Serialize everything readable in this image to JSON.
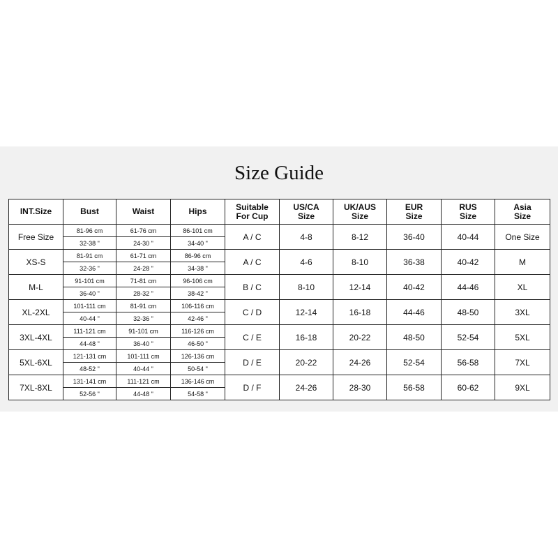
{
  "title": "Size Guide",
  "headers": [
    "INT.Size",
    "Bust",
    "Waist",
    "Hips",
    "Suitable\nFor Cup",
    "US/CA\nSize",
    "UK/AUS\nSize",
    "EUR\nSize",
    "RUS\nSize",
    "Asia\nSize"
  ],
  "rows": [
    {
      "int": "Free Size",
      "bust_cm": "81-96 cm",
      "bust_in": "32-38 \"",
      "waist_cm": "61-76 cm",
      "waist_in": "24-30 \"",
      "hips_cm": "86-101 cm",
      "hips_in": "34-40 \"",
      "cup": "A / C",
      "us": "4-8",
      "uk": "8-12",
      "eur": "36-40",
      "rus": "40-44",
      "asia": "One Size"
    },
    {
      "int": "XS-S",
      "bust_cm": "81-91 cm",
      "bust_in": "32-36 \"",
      "waist_cm": "61-71 cm",
      "waist_in": "24-28 \"",
      "hips_cm": "86-96 cm",
      "hips_in": "34-38 \"",
      "cup": "A / C",
      "us": "4-6",
      "uk": "8-10",
      "eur": "36-38",
      "rus": "40-42",
      "asia": "M"
    },
    {
      "int": "M-L",
      "bust_cm": "91-101 cm",
      "bust_in": "36-40 \"",
      "waist_cm": "71-81 cm",
      "waist_in": "28-32 \"",
      "hips_cm": "96-106 cm",
      "hips_in": "38-42 \"",
      "cup": "B / C",
      "us": "8-10",
      "uk": "12-14",
      "eur": "40-42",
      "rus": "44-46",
      "asia": "XL"
    },
    {
      "int": "XL-2XL",
      "bust_cm": "101-111 cm",
      "bust_in": "40-44 \"",
      "waist_cm": "81-91 cm",
      "waist_in": "32-36 \"",
      "hips_cm": "106-116 cm",
      "hips_in": "42-46 \"",
      "cup": "C / D",
      "us": "12-14",
      "uk": "16-18",
      "eur": "44-46",
      "rus": "48-50",
      "asia": "3XL"
    },
    {
      "int": "3XL-4XL",
      "bust_cm": "111-121 cm",
      "bust_in": "44-48 \"",
      "waist_cm": "91-101 cm",
      "waist_in": "36-40 \"",
      "hips_cm": "116-126 cm",
      "hips_in": "46-50 \"",
      "cup": "C / E",
      "us": "16-18",
      "uk": "20-22",
      "eur": "48-50",
      "rus": "52-54",
      "asia": "5XL"
    },
    {
      "int": "5XL-6XL",
      "bust_cm": "121-131 cm",
      "bust_in": "48-52 \"",
      "waist_cm": "101-111 cm",
      "waist_in": "40-44 \"",
      "hips_cm": "126-136 cm",
      "hips_in": "50-54 \"",
      "cup": "D / E",
      "us": "20-22",
      "uk": "24-26",
      "eur": "52-54",
      "rus": "56-58",
      "asia": "7XL"
    },
    {
      "int": "7XL-8XL",
      "bust_cm": "131-141 cm",
      "bust_in": "52-56 \"",
      "waist_cm": "111-121 cm",
      "waist_in": "44-48 \"",
      "hips_cm": "136-146 cm",
      "hips_in": "54-58 \"",
      "cup": "D / F",
      "us": "24-26",
      "uk": "28-30",
      "eur": "56-58",
      "rus": "60-62",
      "asia": "9XL"
    }
  ]
}
